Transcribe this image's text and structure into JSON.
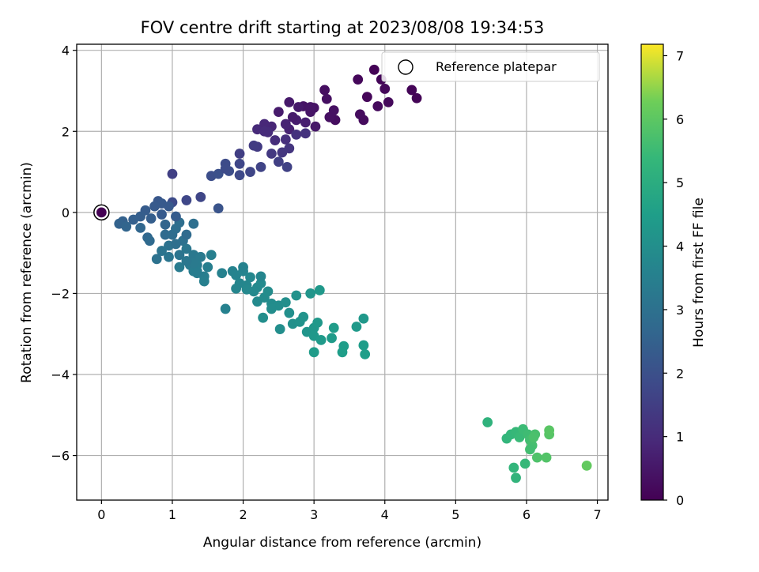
{
  "chart_data": {
    "type": "scatter",
    "title": "FOV centre drift starting at 2023/08/08 19:34:53",
    "xlabel": "Angular distance from reference (arcmin)",
    "ylabel": "Rotation from reference (arcmin)",
    "xlim": [
      -0.35,
      7.15
    ],
    "ylim": [
      -7.1,
      4.15
    ],
    "xticks": [
      0,
      1,
      2,
      3,
      4,
      5,
      6,
      7
    ],
    "yticks": [
      -6,
      -4,
      -2,
      0,
      2,
      4
    ],
    "grid": true,
    "colormap": "viridis",
    "colorbar": {
      "label": "Hours from first FF file",
      "range": [
        0,
        7.18
      ],
      "ticks": [
        0,
        1,
        2,
        3,
        4,
        5,
        6,
        7
      ]
    },
    "legend": {
      "placement": "upper-right",
      "entries": [
        "Reference platepar"
      ]
    },
    "reference_point": {
      "x": 0,
      "y": 0
    },
    "points": [
      [
        3.85,
        3.52,
        0.05
      ],
      [
        4.45,
        2.82,
        0.06
      ],
      [
        4.38,
        3.02,
        0.08
      ],
      [
        3.95,
        3.28,
        0.1
      ],
      [
        3.75,
        2.85,
        0.12
      ],
      [
        3.62,
        3.28,
        0.14
      ],
      [
        4.0,
        3.05,
        0.16
      ],
      [
        4.05,
        2.72,
        0.18
      ],
      [
        3.9,
        2.62,
        0.2
      ],
      [
        3.7,
        2.28,
        0.22
      ],
      [
        3.65,
        2.42,
        0.25
      ],
      [
        3.3,
        2.28,
        0.28
      ],
      [
        3.15,
        3.02,
        0.3
      ],
      [
        3.18,
        2.8,
        0.33
      ],
      [
        3.28,
        2.52,
        0.36
      ],
      [
        3.0,
        2.58,
        0.4
      ],
      [
        2.85,
        2.62,
        0.43
      ],
      [
        2.95,
        2.48,
        0.46
      ],
      [
        3.02,
        2.12,
        0.5
      ],
      [
        2.65,
        2.72,
        0.55
      ],
      [
        2.5,
        2.48,
        0.6
      ],
      [
        2.75,
        2.28,
        0.65
      ],
      [
        2.88,
        2.22,
        0.7
      ],
      [
        2.65,
        2.05,
        0.75
      ],
      [
        2.6,
        2.18,
        0.8
      ],
      [
        2.4,
        2.12,
        0.85
      ],
      [
        2.3,
        2.18,
        0.9
      ],
      [
        2.2,
        2.05,
        0.95
      ],
      [
        2.35,
        1.98,
        1.0
      ],
      [
        2.45,
        1.78,
        1.05
      ],
      [
        2.6,
        1.8,
        1.1
      ],
      [
        2.75,
        1.92,
        1.15
      ],
      [
        2.88,
        1.95,
        1.2
      ],
      [
        2.65,
        1.58,
        1.25
      ],
      [
        2.55,
        1.48,
        1.3
      ],
      [
        2.4,
        1.45,
        1.35
      ],
      [
        2.2,
        1.62,
        1.4
      ],
      [
        2.15,
        1.65,
        1.45
      ],
      [
        1.95,
        1.45,
        1.5
      ],
      [
        2.5,
        1.25,
        1.55
      ],
      [
        2.62,
        1.12,
        1.6
      ],
      [
        2.25,
        1.12,
        1.65
      ],
      [
        2.1,
        1.0,
        1.7
      ],
      [
        1.95,
        1.2,
        1.75
      ],
      [
        1.95,
        0.92,
        1.8
      ],
      [
        1.75,
        1.2,
        1.85
      ],
      [
        1.8,
        1.02,
        1.9
      ],
      [
        1.55,
        0.9,
        1.95
      ],
      [
        1.65,
        0.95,
        2.0
      ],
      [
        1.0,
        0.95,
        1.55
      ],
      [
        1.4,
        0.38,
        1.7
      ],
      [
        1.2,
        0.3,
        1.75
      ],
      [
        1.0,
        0.25,
        1.85
      ],
      [
        1.65,
        0.1,
        2.1
      ],
      [
        0.8,
        0.28,
        2.2
      ],
      [
        0.85,
        0.22,
        2.25
      ],
      [
        0.75,
        0.15,
        2.3
      ],
      [
        0.62,
        0.05,
        2.35
      ],
      [
        0.55,
        -0.1,
        2.4
      ],
      [
        0.45,
        -0.18,
        2.45
      ],
      [
        0.3,
        -0.22,
        2.5
      ],
      [
        0.25,
        -0.28,
        2.55
      ],
      [
        0.35,
        -0.35,
        2.6
      ],
      [
        0.55,
        -0.38,
        2.65
      ],
      [
        0.65,
        -0.62,
        2.7
      ],
      [
        0.68,
        -0.7,
        2.75
      ],
      [
        0.9,
        -0.55,
        2.8
      ],
      [
        1.0,
        -0.55,
        2.85
      ],
      [
        1.05,
        -0.4,
        2.9
      ],
      [
        1.1,
        -0.25,
        2.9
      ],
      [
        1.3,
        -0.28,
        2.95
      ],
      [
        1.15,
        -0.7,
        3.0
      ],
      [
        0.95,
        -0.82,
        3.05
      ],
      [
        0.85,
        -0.95,
        3.1
      ],
      [
        1.1,
        -1.05,
        3.1
      ],
      [
        0.95,
        -1.1,
        3.15
      ],
      [
        1.2,
        -0.9,
        3.2
      ],
      [
        1.3,
        -1.05,
        3.25
      ],
      [
        1.4,
        -1.1,
        3.3
      ],
      [
        1.35,
        -1.3,
        3.35
      ],
      [
        1.25,
        -1.3,
        3.3
      ],
      [
        1.1,
        -1.35,
        3.35
      ],
      [
        1.35,
        -1.45,
        3.4
      ],
      [
        1.5,
        -1.35,
        3.45
      ],
      [
        1.45,
        -1.58,
        3.45
      ],
      [
        1.45,
        -1.7,
        3.5
      ],
      [
        1.55,
        -1.05,
        3.5
      ],
      [
        1.7,
        -1.5,
        3.55
      ],
      [
        1.75,
        -2.38,
        3.55
      ],
      [
        1.85,
        -1.45,
        3.6
      ],
      [
        1.9,
        -1.55,
        3.62
      ],
      [
        2.0,
        -1.45,
        3.65
      ],
      [
        1.95,
        -1.75,
        3.68
      ],
      [
        1.9,
        -1.88,
        3.7
      ],
      [
        2.05,
        -1.8,
        3.72
      ],
      [
        2.1,
        -1.6,
        3.75
      ],
      [
        2.05,
        -1.9,
        3.78
      ],
      [
        2.2,
        -1.85,
        3.8
      ],
      [
        2.15,
        -1.95,
        3.82
      ],
      [
        2.25,
        -1.75,
        3.85
      ],
      [
        2.2,
        -2.2,
        3.85
      ],
      [
        2.3,
        -2.1,
        3.88
      ],
      [
        2.35,
        -1.95,
        3.9
      ],
      [
        2.4,
        -2.25,
        3.92
      ],
      [
        2.5,
        -2.3,
        3.95
      ],
      [
        2.28,
        -2.6,
        3.98
      ],
      [
        2.52,
        -2.88,
        3.98
      ],
      [
        2.6,
        -2.22,
        4.0
      ],
      [
        2.65,
        -2.48,
        4.02
      ],
      [
        2.7,
        -2.75,
        4.05
      ],
      [
        2.8,
        -2.7,
        4.1
      ],
      [
        2.85,
        -2.58,
        4.15
      ],
      [
        2.9,
        -2.95,
        4.2
      ],
      [
        3.0,
        -2.85,
        4.25
      ],
      [
        3.05,
        -2.72,
        4.28
      ],
      [
        3.0,
        -3.05,
        4.3
      ],
      [
        3.1,
        -3.15,
        4.35
      ],
      [
        3.25,
        -3.1,
        4.4
      ],
      [
        3.28,
        -2.85,
        4.42
      ],
      [
        3.42,
        -3.3,
        4.45
      ],
      [
        3.4,
        -3.45,
        4.48
      ],
      [
        3.0,
        -3.45,
        4.4
      ],
      [
        3.08,
        -1.92,
        4.3
      ],
      [
        2.95,
        -2.0,
        4.2
      ],
      [
        2.75,
        -2.05,
        4.1
      ],
      [
        3.6,
        -2.82,
        4.35
      ],
      [
        3.7,
        -2.62,
        4.3
      ],
      [
        3.7,
        -3.28,
        4.45
      ],
      [
        3.72,
        -3.5,
        4.5
      ],
      [
        1.3,
        -1.45,
        3.4
      ],
      [
        0.85,
        -0.05,
        2.3
      ],
      [
        0.95,
        0.15,
        2.25
      ],
      [
        1.05,
        -0.1,
        2.35
      ],
      [
        0.7,
        -0.15,
        2.4
      ],
      [
        1.2,
        -0.55,
        2.8
      ],
      [
        1.05,
        -0.78,
        2.95
      ],
      [
        0.78,
        -1.15,
        3.05
      ],
      [
        2.0,
        -1.35,
        3.6
      ],
      [
        2.25,
        -1.58,
        3.7
      ],
      [
        2.4,
        -2.38,
        3.95
      ],
      [
        1.3,
        -1.25,
        3.3
      ],
      [
        1.35,
        -1.5,
        3.4
      ],
      [
        1.2,
        -1.2,
        3.2
      ],
      [
        0.9,
        -0.3,
        2.6
      ],
      [
        2.3,
        2.0,
        1.0
      ],
      [
        2.78,
        2.6,
        0.55
      ],
      [
        2.7,
        2.35,
        0.6
      ],
      [
        1.75,
        1.08,
        1.85
      ],
      [
        3.22,
        2.35,
        0.35
      ],
      [
        2.95,
        2.6,
        0.45
      ],
      [
        5.45,
        -5.18,
        5.2
      ],
      [
        5.72,
        -5.58,
        5.3
      ],
      [
        5.78,
        -5.48,
        5.35
      ],
      [
        5.85,
        -5.42,
        5.4
      ],
      [
        5.9,
        -5.55,
        5.45
      ],
      [
        5.95,
        -5.35,
        5.5
      ],
      [
        6.02,
        -5.48,
        5.55
      ],
      [
        6.05,
        -5.62,
        5.6
      ],
      [
        6.08,
        -5.75,
        5.65
      ],
      [
        6.12,
        -5.48,
        5.7
      ],
      [
        6.1,
        -5.55,
        5.75
      ],
      [
        5.82,
        -6.3,
        5.3
      ],
      [
        5.85,
        -6.55,
        5.25
      ],
      [
        5.98,
        -6.2,
        5.4
      ],
      [
        6.05,
        -5.85,
        5.6
      ],
      [
        6.15,
        -6.05,
        5.8
      ],
      [
        6.28,
        -6.05,
        5.85
      ],
      [
        6.32,
        -5.48,
        5.9
      ],
      [
        6.32,
        -5.38,
        5.95
      ],
      [
        6.85,
        -6.25,
        6.1
      ]
    ]
  }
}
